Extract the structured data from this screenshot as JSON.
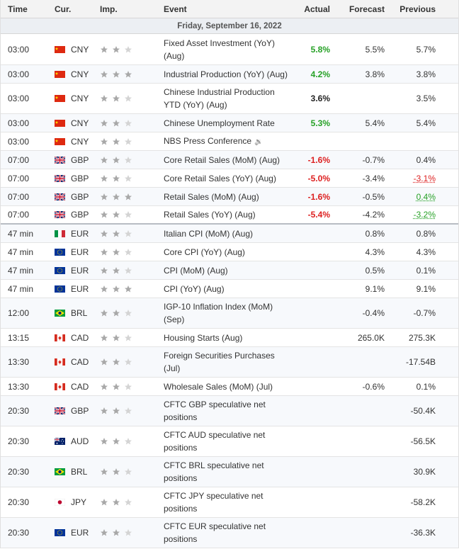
{
  "columns": {
    "time": "Time",
    "cur": "Cur.",
    "imp": "Imp.",
    "event": "Event",
    "actual": "Actual",
    "forecast": "Forecast",
    "previous": "Previous"
  },
  "day_label": "Friday, September 16, 2022",
  "colors": {
    "positive": "#26a126",
    "negative": "#dd1f1f",
    "star_filled": "#a8a8a8",
    "star_empty": "#d4d4d4"
  },
  "rows": [
    {
      "time": "03:00",
      "flag": "cn-flag-icon",
      "cur": "CNY",
      "stars": 2,
      "event": "Fixed Asset Investment (YoY) (Aug)",
      "actual": "5.8%",
      "actual_class": "pos",
      "forecast": "5.5%",
      "previous": "5.7%",
      "prev_class": "",
      "h": 44
    },
    {
      "time": "03:00",
      "flag": "cn-flag-icon",
      "cur": "CNY",
      "stars": 3,
      "event": "Industrial Production (YoY) (Aug)",
      "actual": "4.2%",
      "actual_class": "pos",
      "forecast": "3.8%",
      "previous": "3.8%",
      "prev_class": "",
      "h": 26
    },
    {
      "time": "03:00",
      "flag": "cn-flag-icon",
      "cur": "CNY",
      "stars": 2,
      "event": "Chinese Industrial Production YTD (YoY) (Aug)",
      "actual": "3.6%",
      "actual_class": "neu",
      "forecast": "",
      "previous": "3.5%",
      "prev_class": "",
      "h": 43
    },
    {
      "time": "03:00",
      "flag": "cn-flag-icon",
      "cur": "CNY",
      "stars": 2,
      "event": "Chinese Unemployment Rate",
      "actual": "5.3%",
      "actual_class": "pos",
      "forecast": "5.4%",
      "previous": "5.4%",
      "prev_class": "",
      "h": 26
    },
    {
      "time": "03:00",
      "flag": "cn-flag-icon",
      "cur": "CNY",
      "stars": 2,
      "event": "NBS Press Conference",
      "speaker": true,
      "actual": "",
      "actual_class": "",
      "forecast": "",
      "previous": "",
      "prev_class": "",
      "h": 26
    },
    {
      "time": "07:00",
      "flag": "gb-flag-icon",
      "cur": "GBP",
      "stars": 2,
      "event": "Core Retail Sales (MoM) (Aug)",
      "actual": "-1.6%",
      "actual_class": "neg",
      "forecast": "-0.7%",
      "previous": "0.4%",
      "prev_class": "",
      "h": 26
    },
    {
      "time": "07:00",
      "flag": "gb-flag-icon",
      "cur": "GBP",
      "stars": 2,
      "event": "Core Retail Sales (YoY) (Aug)",
      "actual": "-5.0%",
      "actual_class": "neg",
      "forecast": "-3.4%",
      "previous": "-3.1%",
      "prev_class": "prev-neg",
      "h": 26
    },
    {
      "time": "07:00",
      "flag": "gb-flag-icon",
      "cur": "GBP",
      "stars": 3,
      "event": "Retail Sales (MoM) (Aug)",
      "actual": "-1.6%",
      "actual_class": "neg",
      "forecast": "-0.5%",
      "previous": "0.4%",
      "prev_class": "prev-pos",
      "h": 26
    },
    {
      "time": "07:00",
      "flag": "gb-flag-icon",
      "cur": "GBP",
      "stars": 2,
      "event": "Retail Sales (YoY) (Aug)",
      "actual": "-5.4%",
      "actual_class": "neg",
      "forecast": "-4.2%",
      "previous": "-3.2%",
      "prev_class": "prev-pos",
      "h": 26,
      "sep": true
    },
    {
      "time": "47 min",
      "flag": "it-flag-icon",
      "cur": "EUR",
      "stars": 2,
      "event": "Italian CPI (MoM) (Aug)",
      "actual": "",
      "actual_class": "",
      "forecast": "0.8%",
      "previous": "0.8%",
      "prev_class": "",
      "h": 26
    },
    {
      "time": "47 min",
      "flag": "eu-flag-icon",
      "cur": "EUR",
      "stars": 2,
      "event": "Core CPI (YoY) (Aug)",
      "actual": "",
      "actual_class": "",
      "forecast": "4.3%",
      "previous": "4.3%",
      "prev_class": "",
      "h": 26
    },
    {
      "time": "47 min",
      "flag": "eu-flag-icon",
      "cur": "EUR",
      "stars": 2,
      "event": "CPI (MoM) (Aug)",
      "actual": "",
      "actual_class": "",
      "forecast": "0.5%",
      "previous": "0.1%",
      "prev_class": "",
      "h": 26
    },
    {
      "time": "47 min",
      "flag": "eu-flag-icon",
      "cur": "EUR",
      "stars": 3,
      "event": "CPI (YoY) (Aug)",
      "actual": "",
      "actual_class": "",
      "forecast": "9.1%",
      "previous": "9.1%",
      "prev_class": "",
      "h": 26
    },
    {
      "time": "12:00",
      "flag": "br-flag-icon",
      "cur": "BRL",
      "stars": 2,
      "event": "IGP-10 Inflation Index (MoM) (Sep)",
      "actual": "",
      "actual_class": "",
      "forecast": "-0.4%",
      "previous": "-0.7%",
      "prev_class": "",
      "h": 43
    },
    {
      "time": "13:15",
      "flag": "ca-flag-icon",
      "cur": "CAD",
      "stars": 2,
      "event": "Housing Starts (Aug)",
      "actual": "",
      "actual_class": "",
      "forecast": "265.0K",
      "previous": "275.3K",
      "prev_class": "",
      "h": 26
    },
    {
      "time": "13:30",
      "flag": "ca-flag-icon",
      "cur": "CAD",
      "stars": 2,
      "event": "Foreign Securities Purchases (Jul)",
      "actual": "",
      "actual_class": "",
      "forecast": "",
      "previous": "-17.54B",
      "prev_class": "",
      "h": 43
    },
    {
      "time": "13:30",
      "flag": "ca-flag-icon",
      "cur": "CAD",
      "stars": 2,
      "event": "Wholesale Sales (MoM) (Jul)",
      "actual": "",
      "actual_class": "",
      "forecast": "-0.6%",
      "previous": "0.1%",
      "prev_class": "",
      "h": 26
    },
    {
      "time": "20:30",
      "flag": "gb-flag-icon",
      "cur": "GBP",
      "stars": 2,
      "event": "CFTC GBP speculative net positions",
      "actual": "",
      "actual_class": "",
      "forecast": "",
      "previous": "-50.4K",
      "prev_class": "",
      "h": 43
    },
    {
      "time": "20:30",
      "flag": "au-flag-icon",
      "cur": "AUD",
      "stars": 2,
      "event": "CFTC AUD speculative net positions",
      "actual": "",
      "actual_class": "",
      "forecast": "",
      "previous": "-56.5K",
      "prev_class": "",
      "h": 43
    },
    {
      "time": "20:30",
      "flag": "br-flag-icon",
      "cur": "BRL",
      "stars": 2,
      "event": "CFTC BRL speculative net positions",
      "actual": "",
      "actual_class": "",
      "forecast": "",
      "previous": "30.9K",
      "prev_class": "",
      "h": 43
    },
    {
      "time": "20:30",
      "flag": "jp-flag-icon",
      "cur": "JPY",
      "stars": 2,
      "event": "CFTC JPY speculative net positions",
      "actual": "",
      "actual_class": "",
      "forecast": "",
      "previous": "-58.2K",
      "prev_class": "",
      "h": 43
    },
    {
      "time": "20:30",
      "flag": "eu-flag-icon",
      "cur": "EUR",
      "stars": 2,
      "event": "CFTC EUR speculative net positions",
      "actual": "",
      "actual_class": "",
      "forecast": "",
      "previous": "-36.3K",
      "prev_class": "",
      "h": 43
    }
  ]
}
